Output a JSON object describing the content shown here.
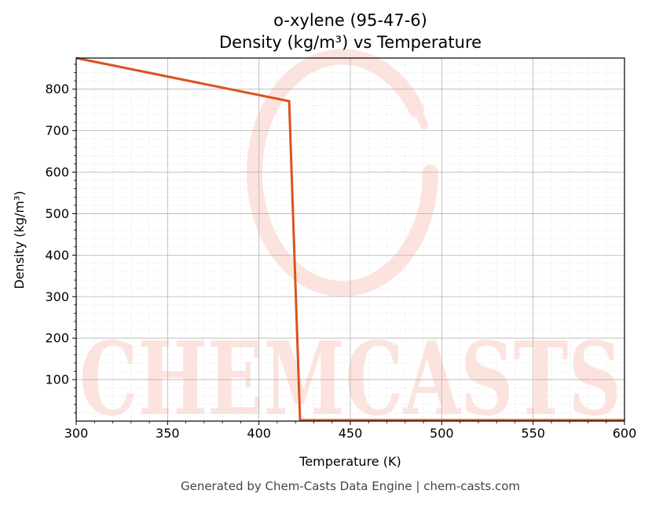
{
  "chart_data": {
    "type": "line",
    "title": "o-xylene (95-47-6)",
    "subtitle": "Density (kg/m³) vs Temperature",
    "xlabel": "Temperature (K)",
    "ylabel": "Density (kg/m³)",
    "xlim": [
      300,
      600
    ],
    "ylim": [
      0,
      875
    ],
    "xticks": [
      300,
      350,
      400,
      450,
      500,
      550,
      600
    ],
    "yticks": [
      100,
      200,
      300,
      400,
      500,
      600,
      700,
      800
    ],
    "grid": true,
    "series": [
      {
        "color": "#d9531e",
        "x": [
          300,
          416.5,
          422.5,
          600
        ],
        "y": [
          875,
          771,
          2,
          2
        ]
      }
    ]
  },
  "watermark": {
    "text": "CHEMCASTS",
    "color": "#fde3de"
  },
  "footer": "Generated by Chem-Casts Data Engine | chem-casts.com"
}
